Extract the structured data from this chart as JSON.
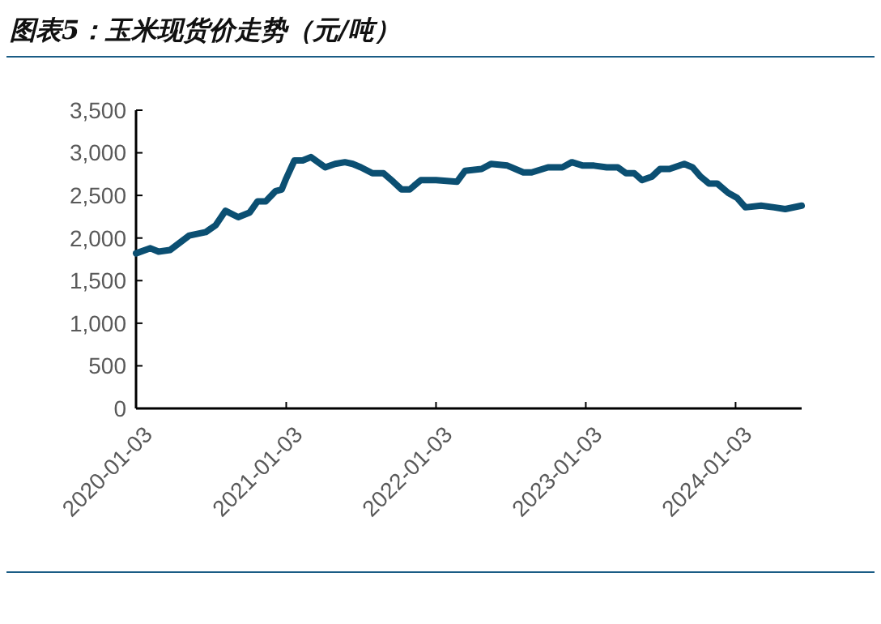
{
  "chart_data": {
    "type": "line",
    "title": "图表5：玉米现货价走势（元/吨）",
    "x": [
      "2020-01-03",
      "2020-02-07",
      "2020-02-27",
      "2020-03-26",
      "2020-05-12",
      "2020-06-21",
      "2020-07-15",
      "2020-08-08",
      "2020-09-08",
      "2020-10-06",
      "2020-10-25",
      "2020-11-14",
      "2020-12-08",
      "2020-12-23",
      "2021-01-03",
      "2021-01-23",
      "2021-02-12",
      "2021-03-04",
      "2021-04-08",
      "2021-05-02",
      "2021-05-26",
      "2021-06-14",
      "2021-07-04",
      "2021-08-01",
      "2021-08-28",
      "2021-09-21",
      "2021-10-11",
      "2021-10-31",
      "2021-11-27",
      "2022-01-03",
      "2022-02-23",
      "2022-03-15",
      "2022-04-24",
      "2022-05-17",
      "2022-06-26",
      "2022-08-04",
      "2022-08-24",
      "2022-10-03",
      "2022-11-07",
      "2022-11-30",
      "2022-12-27",
      "2023-01-23",
      "2023-02-23",
      "2023-03-22",
      "2023-04-11",
      "2023-05-01",
      "2023-05-20",
      "2023-06-13",
      "2023-07-03",
      "2023-07-26",
      "2023-08-31",
      "2023-09-20",
      "2023-10-10",
      "2023-10-30",
      "2023-11-19",
      "2023-12-16",
      "2024-01-07",
      "2024-01-27",
      "2024-03-05",
      "2024-04-06",
      "2024-05-03",
      "2024-06-12"
    ],
    "series": [
      {
        "color": "#0b4f72",
        "values": [
          1820,
          1880,
          1840,
          1860,
          2030,
          2070,
          2150,
          2320,
          2245,
          2300,
          2430,
          2430,
          2550,
          2570,
          2700,
          2910,
          2910,
          2950,
          2830,
          2870,
          2890,
          2870,
          2830,
          2760,
          2760,
          2660,
          2570,
          2570,
          2680,
          2680,
          2660,
          2790,
          2810,
          2870,
          2850,
          2770,
          2770,
          2830,
          2830,
          2890,
          2850,
          2850,
          2830,
          2830,
          2760,
          2760,
          2680,
          2720,
          2810,
          2810,
          2870,
          2830,
          2720,
          2640,
          2640,
          2530,
          2470,
          2360,
          2380,
          2360,
          2340,
          2380
        ]
      }
    ],
    "xlim": [
      "2020-01-03",
      "2024-06-12"
    ],
    "xticks": [
      "2020-01-03",
      "2021-01-03",
      "2022-01-03",
      "2023-01-03",
      "2024-01-03"
    ],
    "ylim": [
      0,
      3500
    ],
    "yticks": [
      {
        "value": 0,
        "label": "0"
      },
      {
        "value": 500,
        "label": "500"
      },
      {
        "value": 1000,
        "label": "1,000"
      },
      {
        "value": 1500,
        "label": "1,500"
      },
      {
        "value": 2000,
        "label": "2,000"
      },
      {
        "value": 2500,
        "label": "2,500"
      },
      {
        "value": 3000,
        "label": "3,000"
      },
      {
        "value": 3500,
        "label": "3,500"
      }
    ],
    "marker": "none",
    "line_style": "solid"
  }
}
